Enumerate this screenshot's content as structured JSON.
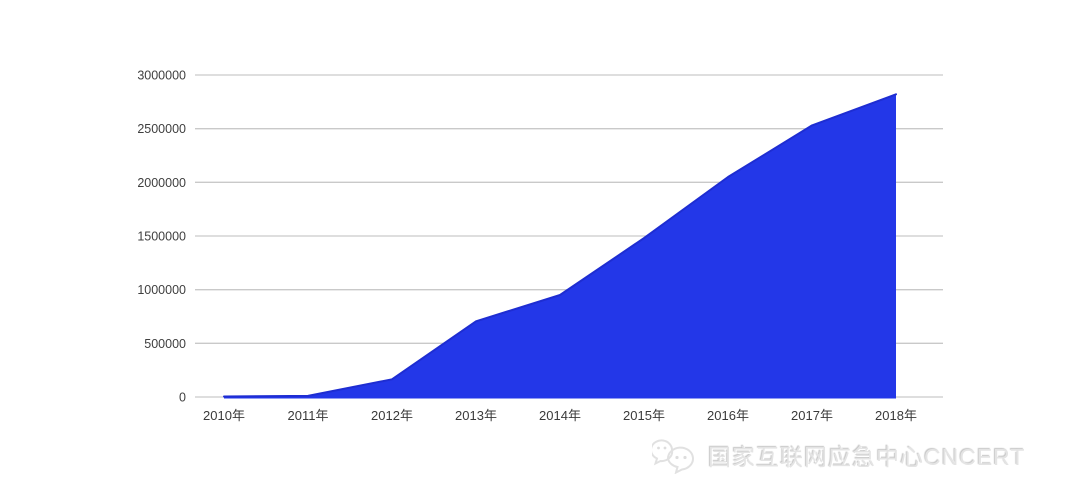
{
  "chart_data": {
    "type": "area",
    "title": "",
    "xlabel": "",
    "ylabel": "",
    "categories": [
      "2010年",
      "2011年",
      "2012年",
      "2013年",
      "2014年",
      "2015年",
      "2016年",
      "2017年",
      "2018年"
    ],
    "values": [
      5000,
      10000,
      165000,
      705000,
      950000,
      1480000,
      2050000,
      2530000,
      2820000
    ],
    "y_ticks": [
      0,
      500000,
      1000000,
      1500000,
      2000000,
      2500000,
      3000000
    ],
    "y_tick_labels": [
      "0",
      "500000",
      "1000000",
      "1500000",
      "2000000",
      "2500000",
      "3000000"
    ],
    "ylim": [
      0,
      3000000
    ],
    "grid": true,
    "legend_position": "none",
    "colors": {
      "area_fill": "#2337e8",
      "area_edge": "#1e2dd2",
      "gridline": "#c9c9c9",
      "tick_text": "#3f3f3f"
    }
  },
  "watermark": {
    "text": "国家互联网应急中心CNCERT",
    "logo": "chat-bubbles-logo",
    "color": "#e4e4e4"
  }
}
